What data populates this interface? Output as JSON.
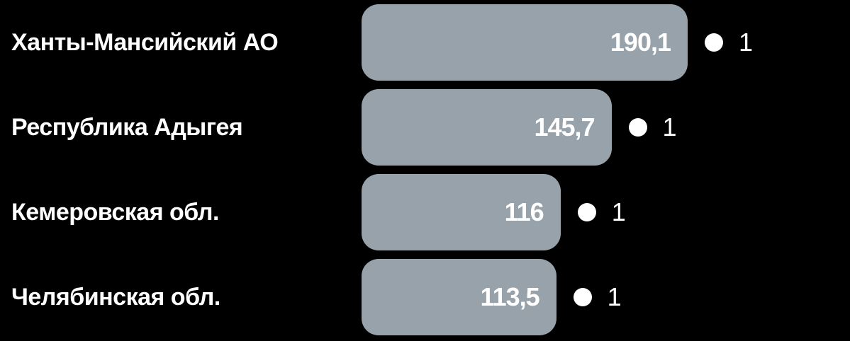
{
  "chart_data": {
    "type": "bar",
    "orientation": "horizontal",
    "categories": [
      "Ханты-Мансийский АО",
      "Республика Адыгея",
      "Кемеровская обл.",
      "Челябинская обл."
    ],
    "values": [
      190.1,
      145.7,
      116,
      113.5
    ],
    "value_labels": [
      "190,1",
      "145,7",
      "116",
      "113,5"
    ],
    "ranks": [
      "1",
      "1",
      "1",
      "1"
    ],
    "xlim": [
      0,
      190.1
    ],
    "grid": false,
    "colors": {
      "bar": "#98a2aa",
      "background": "#000000",
      "text": "#ffffff",
      "dot": "#ffffff"
    }
  }
}
